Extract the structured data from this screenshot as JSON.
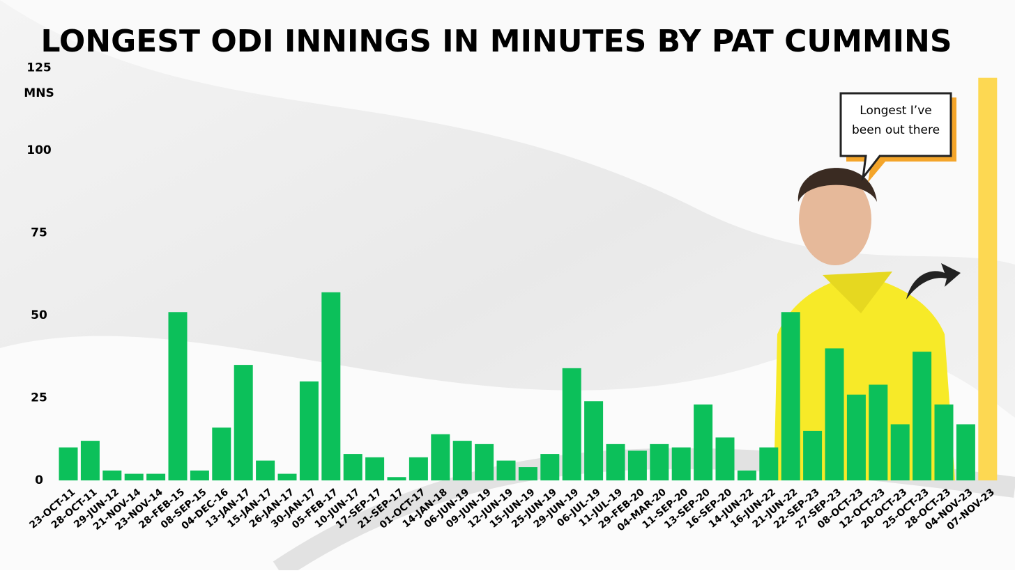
{
  "chart_data": {
    "type": "bar",
    "title": "LONGEST ODI INNINGS IN MINUTES BY PAT CUMMINS",
    "y_unit": "MNS",
    "annotation": "Longest I’ve been out there",
    "categories": [
      "23-OCT-11",
      "28-OCT-11",
      "29-JUN-12",
      "21-NOV-14",
      "23-NOV-14",
      "28-FEB-15",
      "08-SEP-15",
      "04-DEC-16",
      "13-JAN-17",
      "15-JAN-17",
      "26-JAN-17",
      "30-JAN-17",
      "05-FEB-17",
      "10-JUN-17",
      "17-SEP-17",
      "21-SEP-17",
      "01-OCT-17",
      "14-JAN-18",
      "06-JUN-19",
      "09-JUN-19",
      "12-JUN-19",
      "15-JUN-19",
      "25-JUN-19",
      "29-JUN-19",
      "06-JUL-19",
      "11-JUL-19",
      "29-FEB-20",
      "04-MAR-20",
      "11-SEP-20",
      "13-SEP-20",
      "16-SEP-20",
      "14-JUN-22",
      "16-JUN-22",
      "21-JUN-22",
      "22-SEP-23",
      "27-SEP-23",
      "08-OCT-23",
      "12-OCT-23",
      "20-OCT-23",
      "25-OCT-23",
      "28-OCT-23",
      "04-NOV-23",
      "07-NOV-23"
    ],
    "values": [
      10,
      12,
      3,
      2,
      2,
      51,
      3,
      16,
      35,
      6,
      2,
      30,
      57,
      8,
      7,
      1,
      7,
      14,
      12,
      11,
      6,
      4,
      8,
      34,
      24,
      11,
      9,
      11,
      10,
      23,
      13,
      3,
      10,
      51,
      15,
      40,
      26,
      29,
      17,
      39,
      23,
      17,
      122
    ],
    "colors": [
      "#0cc05a",
      "#0cc05a",
      "#0cc05a",
      "#0cc05a",
      "#0cc05a",
      "#0cc05a",
      "#0cc05a",
      "#0cc05a",
      "#0cc05a",
      "#0cc05a",
      "#0cc05a",
      "#0cc05a",
      "#0cc05a",
      "#0cc05a",
      "#0cc05a",
      "#0cc05a",
      "#0cc05a",
      "#0cc05a",
      "#0cc05a",
      "#0cc05a",
      "#0cc05a",
      "#0cc05a",
      "#0cc05a",
      "#0cc05a",
      "#0cc05a",
      "#0cc05a",
      "#0cc05a",
      "#0cc05a",
      "#0cc05a",
      "#0cc05a",
      "#0cc05a",
      "#0cc05a",
      "#0cc05a",
      "#0cc05a",
      "#0cc05a",
      "#0cc05a",
      "#0cc05a",
      "#0cc05a",
      "#0cc05a",
      "#0cc05a",
      "#0cc05a",
      "#0cc05a",
      "#fdd852"
    ],
    "ylim": [
      0,
      125
    ],
    "yticks": [
      0,
      25,
      50,
      75,
      100,
      125
    ],
    "grid": false
  }
}
